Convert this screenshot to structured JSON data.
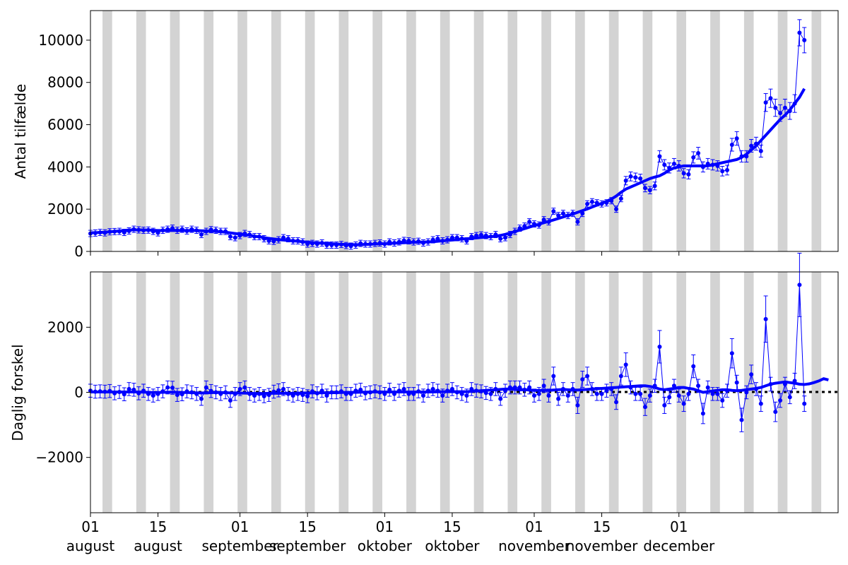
{
  "chart_data": [
    {
      "type": "line",
      "ylabel": "Antal tilfælde",
      "xlabel": "",
      "ylim": [
        0,
        11400
      ],
      "yticks": [
        0,
        2000,
        4000,
        6000,
        8000,
        10000
      ],
      "ytick_labels": [
        "0",
        "2000",
        "4000",
        "6000",
        "8000",
        "10000"
      ],
      "grid": false,
      "weekend_shading": true,
      "series": [
        {
          "role": "daily_points_with_errorbars",
          "color": "#0000ff",
          "values": [
            850,
            870,
            900,
            880,
            930,
            940,
            950,
            900,
            970,
            1050,
            1020,
            1000,
            1010,
            950,
            880,
            1000,
            1050,
            1100,
            1000,
            1050,
            970,
            1050,
            1000,
            800,
            950,
            1030,
            1000,
            950,
            950,
            700,
            650,
            750,
            850,
            800,
            700,
            700,
            600,
            500,
            480,
            550,
            650,
            600,
            500,
            500,
            450,
            350,
            380,
            350,
            400,
            300,
            300,
            300,
            330,
            280,
            250,
            300,
            380,
            350,
            350,
            380,
            400,
            350,
            450,
            400,
            450,
            520,
            500,
            450,
            480,
            400,
            450,
            550,
            600,
            500,
            550,
            650,
            650,
            600,
            500,
            700,
            750,
            780,
            750,
            700,
            800,
            600,
            650,
            800,
            950,
            1100,
            1200,
            1400,
            1300,
            1250,
            1500,
            1400,
            1900,
            1700,
            1800,
            1700,
            1800,
            1400,
            1800,
            2250,
            2350,
            2300,
            2250,
            2300,
            2400,
            2000,
            2500,
            3350,
            3550,
            3500,
            3450,
            3000,
            2900,
            3100,
            4500,
            4100,
            3950,
            4150,
            4050,
            3700,
            3650,
            4450,
            4650,
            4000,
            4150,
            4100,
            4050,
            3800,
            3850,
            5050,
            5350,
            4500,
            4500,
            5000,
            5100,
            4750,
            7050,
            7250,
            6800,
            6550,
            6800,
            6650,
            7000,
            10350,
            10000
          ]
        },
        {
          "role": "smoothed_trend",
          "color": "#0000ff",
          "values": [
            880,
            890,
            900,
            910,
            930,
            950,
            970,
            990,
            1010,
            1020,
            1020,
            1020,
            1010,
            1000,
            990,
            990,
            990,
            990,
            990,
            990,
            990,
            990,
            990,
            980,
            970,
            960,
            950,
            930,
            910,
            880,
            850,
            820,
            790,
            760,
            720,
            690,
            650,
            620,
            590,
            560,
            540,
            520,
            500,
            480,
            460,
            440,
            420,
            400,
            390,
            380,
            360,
            350,
            340,
            330,
            320,
            320,
            320,
            330,
            340,
            350,
            360,
            370,
            380,
            390,
            400,
            410,
            420,
            430,
            440,
            440,
            450,
            460,
            480,
            500,
            520,
            540,
            560,
            580,
            600,
            620,
            640,
            660,
            680,
            700,
            720,
            760,
            810,
            870,
            940,
            1010,
            1080,
            1150,
            1220,
            1290,
            1360,
            1420,
            1490,
            1560,
            1630,
            1700,
            1770,
            1850,
            1930,
            2010,
            2100,
            2190,
            2280,
            2370,
            2480,
            2620,
            2800,
            2950,
            3050,
            3150,
            3250,
            3350,
            3450,
            3520,
            3580,
            3700,
            3850,
            3950,
            4000,
            4050,
            4050,
            4050,
            4050,
            4050,
            4050,
            4100,
            4150,
            4200,
            4250,
            4300,
            4350,
            4450,
            4600,
            4800,
            5000,
            5250,
            5500,
            5750,
            6000,
            6250,
            6450,
            6700,
            7000,
            7300,
            7700
          ]
        }
      ]
    },
    {
      "type": "line",
      "ylabel": "Daglig forskel",
      "xlabel": "",
      "ylim": [
        -3700,
        3700
      ],
      "yticks": [
        -2000,
        0,
        2000
      ],
      "ytick_labels": [
        "−2000",
        "0",
        "2000"
      ],
      "grid": false,
      "zero_reference": "dotted black line at 0",
      "series": [
        {
          "role": "daily_points_with_errorbars",
          "color": "#0000ff",
          "values": [
            50,
            20,
            30,
            20,
            40,
            -30,
            10,
            -60,
            100,
            80,
            -30,
            50,
            -50,
            -100,
            -50,
            30,
            150,
            140,
            -80,
            -60,
            30,
            0,
            -50,
            -200,
            150,
            40,
            0,
            -50,
            0,
            -250,
            -50,
            100,
            150,
            -50,
            -100,
            -50,
            -120,
            -80,
            20,
            60,
            100,
            -50,
            -100,
            -50,
            -80,
            -120,
            30,
            -30,
            50,
            -100,
            0,
            0,
            30,
            -50,
            -50,
            50,
            80,
            -30,
            0,
            30,
            0,
            -50,
            80,
            -50,
            50,
            100,
            -50,
            -50,
            30,
            -100,
            50,
            100,
            50,
            -100,
            50,
            100,
            0,
            -50,
            -100,
            100,
            50,
            30,
            -20,
            -50,
            100,
            -200,
            50,
            150,
            150,
            150,
            80,
            150,
            -100,
            -50,
            200,
            -100,
            500,
            -200,
            100,
            -100,
            100,
            -400,
            400,
            500,
            100,
            -50,
            -50,
            50,
            100,
            -300,
            500,
            850,
            150,
            -50,
            -50,
            -450,
            -100,
            200,
            1400,
            -400,
            -150,
            200,
            -100,
            -350,
            -50,
            800,
            200,
            -650,
            150,
            -50,
            -50,
            -250,
            50,
            1200,
            300,
            -850,
            0,
            550,
            100,
            -350,
            2250,
            250,
            -600,
            -250,
            250,
            -150,
            350,
            3300,
            -350
          ]
        },
        {
          "role": "smoothed_trend",
          "color": "#0000ff",
          "values": [
            10,
            10,
            10,
            10,
            10,
            10,
            10,
            10,
            10,
            10,
            10,
            5,
            0,
            -5,
            -5,
            0,
            5,
            5,
            0,
            -5,
            -5,
            -10,
            -15,
            -20,
            -15,
            -10,
            -5,
            -5,
            -10,
            -15,
            -20,
            -25,
            -25,
            -30,
            -35,
            -35,
            -35,
            -30,
            -30,
            -30,
            -30,
            -30,
            -30,
            -25,
            -20,
            -20,
            -20,
            -15,
            -15,
            -10,
            -10,
            -10,
            -5,
            0,
            0,
            0,
            5,
            5,
            10,
            10,
            10,
            10,
            10,
            10,
            10,
            10,
            10,
            10,
            10,
            10,
            10,
            10,
            15,
            20,
            20,
            20,
            20,
            20,
            20,
            30,
            40,
            50,
            60,
            70,
            80,
            90,
            100,
            100,
            90,
            80,
            80,
            70,
            60,
            60,
            60,
            60,
            70,
            80,
            90,
            80,
            70,
            70,
            80,
            90,
            100,
            110,
            120,
            130,
            140,
            150,
            160,
            170,
            180,
            190,
            200,
            200,
            180,
            150,
            100,
            80,
            100,
            120,
            150,
            150,
            120,
            100,
            50,
            0,
            20,
            40,
            60,
            80,
            80,
            60,
            50,
            60,
            80,
            100,
            120,
            150,
            200,
            250,
            280,
            300,
            320,
            300,
            280,
            250,
            240,
            260,
            300,
            350,
            420,
            380
          ]
        }
      ]
    }
  ],
  "x_axis": {
    "tick_days": [
      0,
      14,
      31,
      45,
      61,
      75,
      92,
      106,
      122
    ],
    "tick_labels": [
      [
        "01",
        "august"
      ],
      [
        "15",
        "august"
      ],
      [
        "01",
        "september"
      ],
      [
        "15",
        "september"
      ],
      [
        "01",
        "oktober"
      ],
      [
        "15",
        "oktober"
      ],
      [
        "01",
        "november"
      ],
      [
        "15",
        "november"
      ],
      [
        "01",
        "december"
      ]
    ]
  }
}
